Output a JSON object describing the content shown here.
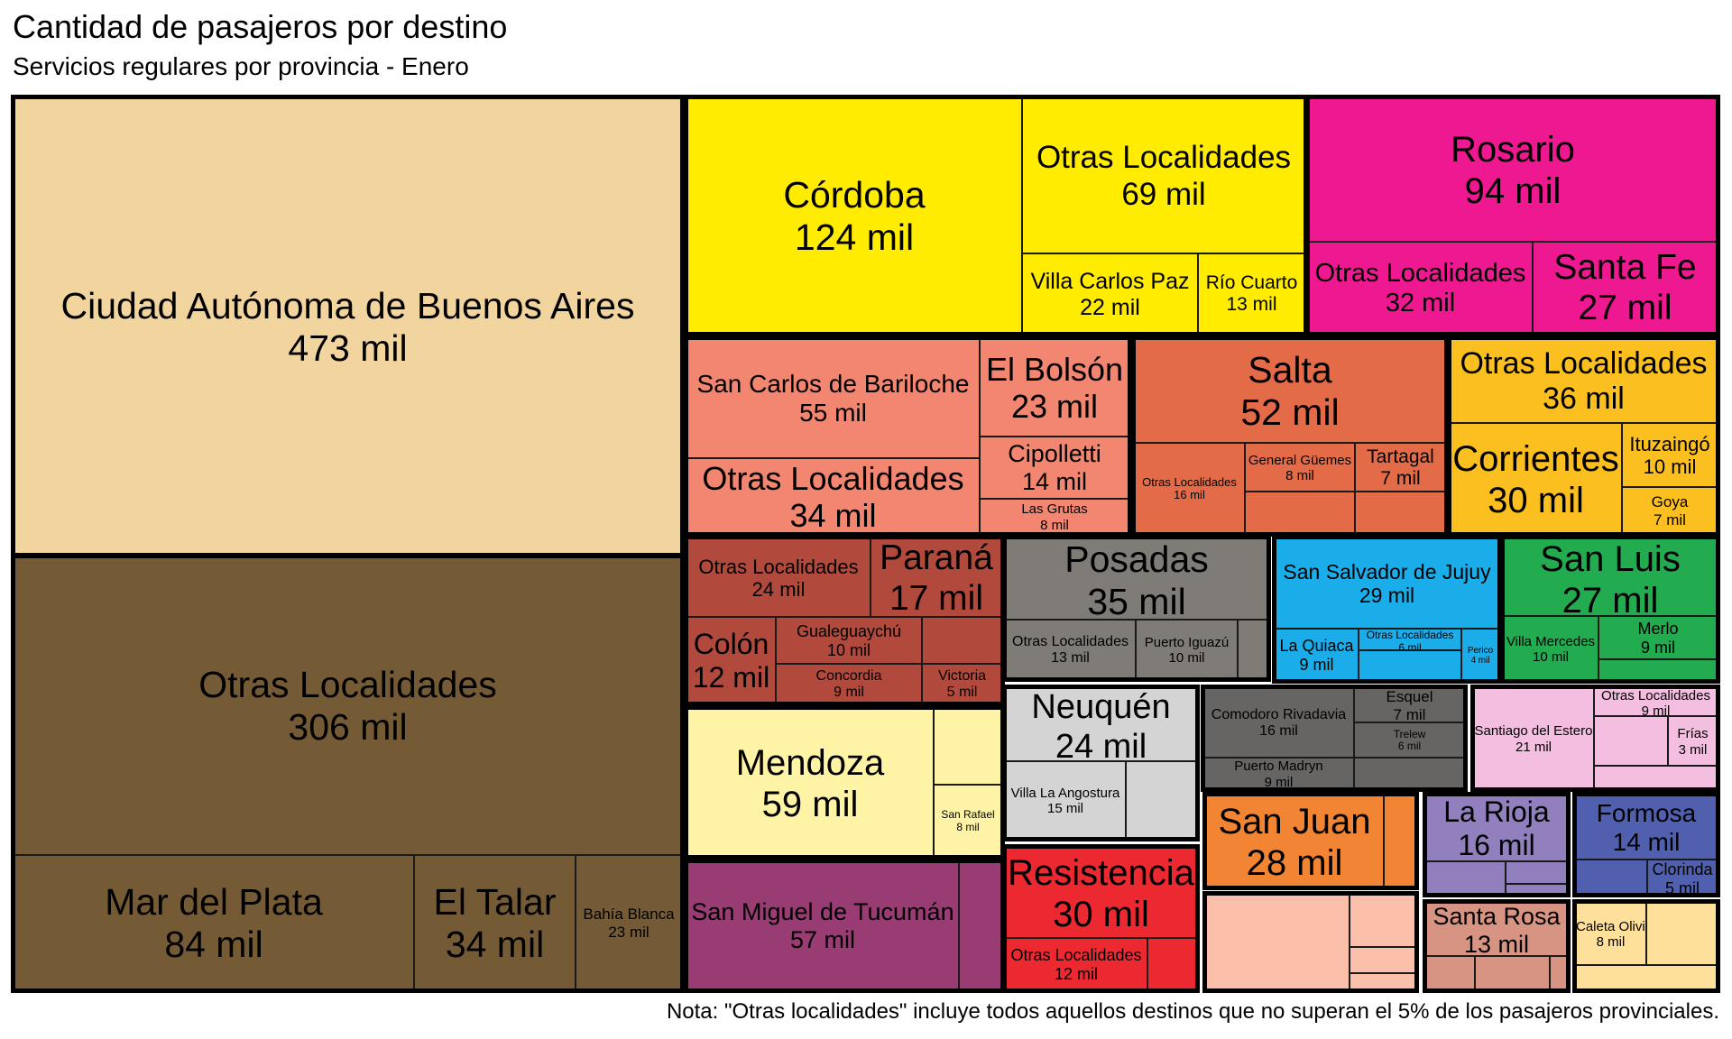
{
  "title": "Cantidad de pasajeros por destino",
  "subtitle": "Servicios regulares por provincia - Enero",
  "note": "Nota: \"Otras localidades\" incluye todos aquellos destinos que no superan el 5% de los pasajeros provinciales.",
  "chart_data": {
    "type": "treemap",
    "title": "Cantidad de pasajeros por destino",
    "subtitle": "Servicios regulares por provincia - Enero",
    "unit": "mil",
    "colors": {
      "caba": "#F2D49F",
      "bsas": "#745B35",
      "cordoba": "#FFEC00",
      "santafe": "#EE1890",
      "rionegro": "#F28670",
      "salta": "#E46B48",
      "corrientes": "#FBC020",
      "entrerios": "#B14A3D",
      "misiones": "#7F7C78",
      "jujuy": "#1BADEA",
      "sanluis": "#22AB4F",
      "mendoza": "#FFF3A6",
      "neuquen": "#D4D4D4",
      "chubut": "#676564",
      "santiago": "#F3BEE0",
      "tucuman": "#9A3C74",
      "chaco": "#EC2930",
      "sanjuan": "#F18534",
      "larioja": "#9180BD",
      "formosa": "#5060AE",
      "catamarca": "#FAC0A9",
      "lapampa": "#D89483",
      "santacruz": "#FEE09A"
    },
    "provinces": [
      {
        "key": "caba",
        "destinations": [
          {
            "name": "Ciudad Autónoma de Buenos Aires",
            "value": "473 mil"
          }
        ]
      },
      {
        "key": "bsas",
        "destinations": [
          {
            "name": "Otras Localidades",
            "value": "306 mil"
          },
          {
            "name": "Mar del Plata",
            "value": "84 mil"
          },
          {
            "name": "El Talar",
            "value": "34 mil"
          },
          {
            "name": "Bahía Blanca",
            "value": "23 mil"
          }
        ]
      },
      {
        "key": "cordoba",
        "destinations": [
          {
            "name": "Córdoba",
            "value": "124 mil"
          },
          {
            "name": "Otras Localidades",
            "value": "69 mil"
          },
          {
            "name": "Villa Carlos Paz",
            "value": "22 mil"
          },
          {
            "name": "Río Cuarto",
            "value": "13 mil"
          }
        ]
      },
      {
        "key": "santafe",
        "destinations": [
          {
            "name": "Rosario",
            "value": "94 mil"
          },
          {
            "name": "Otras Localidades",
            "value": "32 mil"
          },
          {
            "name": "Santa Fe",
            "value": "27 mil"
          }
        ]
      },
      {
        "key": "rionegro",
        "destinations": [
          {
            "name": "San Carlos de Bariloche",
            "value": "55 mil"
          },
          {
            "name": "Otras Localidades",
            "value": "34 mil"
          },
          {
            "name": "El Bolsón",
            "value": "23 mil"
          },
          {
            "name": "Cipolletti",
            "value": "14 mil"
          },
          {
            "name": "Las Grutas",
            "value": "8 mil"
          }
        ]
      },
      {
        "key": "salta",
        "destinations": [
          {
            "name": "Salta",
            "value": "52 mil"
          },
          {
            "name": "Otras Localidades",
            "value": "16 mil"
          },
          {
            "name": "General Güemes",
            "value": "8 mil"
          },
          {
            "name": "Tartagal",
            "value": "7 mil"
          }
        ]
      },
      {
        "key": "corrientes",
        "destinations": [
          {
            "name": "Otras Localidades",
            "value": "36 mil"
          },
          {
            "name": "Corrientes",
            "value": "30 mil"
          },
          {
            "name": "Ituzaingó",
            "value": "10 mil"
          },
          {
            "name": "Goya",
            "value": "7 mil"
          }
        ]
      },
      {
        "key": "entrerios",
        "destinations": [
          {
            "name": "Otras Localidades",
            "value": "24 mil"
          },
          {
            "name": "Paraná",
            "value": "17 mil"
          },
          {
            "name": "Colón",
            "value": "12 mil"
          },
          {
            "name": "Gualeguaychú",
            "value": "10 mil"
          },
          {
            "name": "Concordia",
            "value": "9 mil"
          },
          {
            "name": "Victoria",
            "value": "5 mil"
          }
        ]
      },
      {
        "key": "misiones",
        "destinations": [
          {
            "name": "Posadas",
            "value": "35 mil"
          },
          {
            "name": "Otras Localidades",
            "value": "13 mil"
          },
          {
            "name": "Puerto Iguazú",
            "value": "10 mil"
          }
        ]
      },
      {
        "key": "jujuy",
        "destinations": [
          {
            "name": "San Salvador de Jujuy",
            "value": "29 mil"
          },
          {
            "name": "La Quiaca",
            "value": "9 mil"
          },
          {
            "name": "Otras Localidades",
            "value": "6 mil"
          },
          {
            "name": "Perico",
            "value": "4 mil"
          }
        ]
      },
      {
        "key": "sanluis",
        "destinations": [
          {
            "name": "San Luis",
            "value": "27 mil"
          },
          {
            "name": "Villa Mercedes",
            "value": "10 mil"
          },
          {
            "name": "Merlo",
            "value": "9 mil"
          }
        ]
      },
      {
        "key": "mendoza",
        "destinations": [
          {
            "name": "Mendoza",
            "value": "59 mil"
          },
          {
            "name": "San Rafael",
            "value": "8 mil"
          }
        ]
      },
      {
        "key": "neuquen",
        "destinations": [
          {
            "name": "Neuquén",
            "value": "24 mil"
          },
          {
            "name": "Villa La Angostura",
            "value": "15 mil"
          }
        ]
      },
      {
        "key": "chubut",
        "destinations": [
          {
            "name": "Comodoro Rivadavia",
            "value": "16 mil"
          },
          {
            "name": "Esquel",
            "value": "7 mil"
          },
          {
            "name": "Trelew",
            "value": "6 mil"
          },
          {
            "name": "Puerto Madryn",
            "value": "9 mil"
          }
        ]
      },
      {
        "key": "santiago",
        "destinations": [
          {
            "name": "Santiago del Estero",
            "value": "21 mil"
          },
          {
            "name": "Otras Localidades",
            "value": "9 mil"
          },
          {
            "name": "Frías",
            "value": "3 mil"
          }
        ]
      },
      {
        "key": "tucuman",
        "destinations": [
          {
            "name": "San Miguel de Tucumán",
            "value": "57 mil"
          }
        ]
      },
      {
        "key": "chaco",
        "destinations": [
          {
            "name": "Resistencia",
            "value": "30 mil"
          },
          {
            "name": "Otras Localidades",
            "value": "12 mil"
          }
        ]
      },
      {
        "key": "sanjuan",
        "destinations": [
          {
            "name": "San Juan",
            "value": "28 mil"
          }
        ]
      },
      {
        "key": "larioja",
        "destinations": [
          {
            "name": "La Rioja",
            "value": "16 mil"
          }
        ]
      },
      {
        "key": "formosa",
        "destinations": [
          {
            "name": "Formosa",
            "value": "14 mil"
          },
          {
            "name": "Clorinda",
            "value": "5 mil"
          }
        ]
      },
      {
        "key": "catamarca",
        "destinations": []
      },
      {
        "key": "lapampa",
        "destinations": [
          {
            "name": "Santa Rosa",
            "value": "13 mil"
          }
        ]
      },
      {
        "key": "santacruz",
        "destinations": [
          {
            "name": "Caleta Olivia",
            "value": "8 mil"
          }
        ]
      }
    ]
  }
}
